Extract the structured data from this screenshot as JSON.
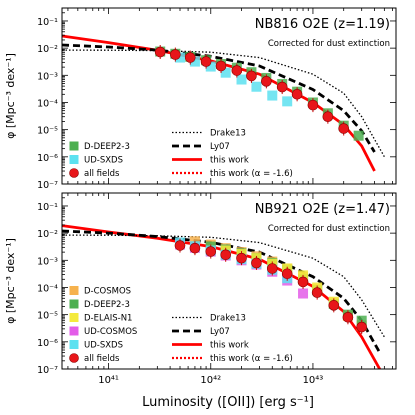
{
  "chart_data": [
    {
      "type": "scatter",
      "panel_title": "NB816 O2E (z=1.19)",
      "annotation": "Corrected for dust extinction",
      "ylabel": "φ [Mpc⁻³ dex⁻¹]",
      "xlabel": "",
      "x_scale": "log",
      "y_scale": "log",
      "xlim": [
        3.5e+40,
        6.5e+43
      ],
      "ylim": [
        1e-07,
        0.3
      ],
      "y_ticks": [
        "10⁻⁷",
        "10⁻⁶",
        "10⁻⁵",
        "10⁻⁴",
        "10⁻³",
        "10⁻²",
        "10⁻¹"
      ],
      "x_ticks": [],
      "legend_left": [
        "D-DEEP2-3",
        "UD-SXDS",
        "all fields"
      ],
      "legend_right": [
        "Drake13",
        "Ly07",
        "this work",
        "this work (α = -1.6)"
      ],
      "legend_placement": "bottom",
      "series": [
        {
          "name": "D-DEEP2-3",
          "color": "#4caf50",
          "marker": "square",
          "x": [
            3.2e+41,
            4.5e+41,
            6.3e+41,
            9e+41,
            1.26e+42,
            1.8e+42,
            2.5e+42,
            3.5e+42,
            5e+42,
            7e+42,
            1e+43,
            1.4e+43,
            2e+43,
            2.8e+43
          ],
          "y": [
            0.0075,
            0.0062,
            0.0048,
            0.0036,
            0.0026,
            0.0019,
            0.0013,
            0.0008,
            0.00048,
            0.00025,
            0.0001,
            4e-05,
            1.4e-05,
            6e-06
          ]
        },
        {
          "name": "UD-SXDS",
          "color": "#5ce1f0",
          "marker": "square",
          "x": [
            5e+41,
            7e+41,
            1e+42,
            1.4e+42,
            2e+42,
            2.8e+42,
            4e+42,
            5.6e+42
          ],
          "y": [
            0.0045,
            0.0032,
            0.0021,
            0.00125,
            0.0007,
            0.00038,
            0.00018,
            0.00011
          ]
        },
        {
          "name": "all fields",
          "color": "#e8161a",
          "marker": "circle",
          "x": [
            3.2e+41,
            4.5e+41,
            6.3e+41,
            9e+41,
            1.26e+42,
            1.8e+42,
            2.5e+42,
            3.5e+42,
            5e+42,
            7e+42,
            1e+43,
            1.4e+43,
            2e+43
          ],
          "y": [
            0.0072,
            0.0058,
            0.0045,
            0.0032,
            0.0022,
            0.0015,
            0.00095,
            0.0006,
            0.00037,
            0.0002,
            8e-05,
            3e-05,
            1.1e-05
          ]
        }
      ],
      "curves": [
        {
          "name": "this work",
          "color": "#ff0000",
          "style": "solid",
          "x": [
            3.5e+40,
            1e+41,
            3e+41,
            1e+42,
            3e+42,
            1e+43,
            2e+43,
            3e+43,
            4e+43
          ],
          "y": [
            0.028,
            0.016,
            0.0083,
            0.0034,
            0.0011,
            0.0001,
            1.5e-05,
            2.5e-06,
            3e-07
          ]
        },
        {
          "name": "Ly07",
          "color": "#000000",
          "style": "dashed",
          "x": [
            3.5e+40,
            1e+41,
            3e+41,
            1e+42,
            3e+42,
            1e+43,
            2e+43,
            3e+43,
            4e+43
          ],
          "y": [
            0.013,
            0.011,
            0.0085,
            0.005,
            0.0022,
            0.0003,
            5e-05,
            9e-06,
            1.5e-06
          ]
        },
        {
          "name": "Drake13",
          "color": "#000000",
          "style": "dotted",
          "x": [
            3.5e+40,
            1e+41,
            3e+41,
            1e+42,
            3e+42,
            1e+43,
            2e+43,
            3e+43,
            5e+43
          ],
          "y": [
            0.0085,
            0.0084,
            0.0081,
            0.0071,
            0.0045,
            0.0011,
            0.00022,
            3e-05,
            1e-06
          ]
        }
      ]
    },
    {
      "type": "scatter",
      "panel_title": "NB921 O2E (z=1.47)",
      "annotation": "Corrected for dust extinction",
      "ylabel": "φ [Mpc⁻³ dex⁻¹]",
      "xlabel": "Luminosity ([OII]) [erg s⁻¹]",
      "x_scale": "log",
      "y_scale": "log",
      "xlim": [
        3.5e+40,
        6.5e+43
      ],
      "ylim": [
        1e-07,
        0.3
      ],
      "y_ticks": [
        "10⁻⁷",
        "10⁻⁶",
        "10⁻⁵",
        "10⁻⁴",
        "10⁻³",
        "10⁻²",
        "10⁻¹"
      ],
      "x_ticks": [
        "10⁴¹",
        "10⁴²",
        "10⁴³"
      ],
      "legend_left": [
        "D-COSMOS",
        "D-DEEP2-3",
        "D-ELAIS-N1",
        "UD-COSMOS",
        "UD-SXDS",
        "all fields"
      ],
      "legend_right": [
        "Drake13",
        "Ly07",
        "this work",
        "this work (α = -1.6)"
      ],
      "legend_placement": "bottom",
      "series": [
        {
          "name": "D-COSMOS",
          "color": "#f6b24d",
          "marker": "square",
          "x": [
            7e+41,
            1e+42,
            1.4e+42,
            2e+42,
            2.8e+42,
            4e+42,
            5.6e+42,
            8e+42,
            1.1e+43,
            1.6e+43,
            2.2e+43,
            3e+43
          ],
          "y": [
            0.005,
            0.0038,
            0.0028,
            0.002,
            0.0014,
            0.0009,
            0.0005,
            0.00025,
            9e-05,
            2.8e-05,
            9e-06,
            4e-06
          ]
        },
        {
          "name": "D-DEEP2-3",
          "color": "#4caf50",
          "marker": "square",
          "x": [
            1e+42,
            1.4e+42,
            2e+42,
            2.8e+42,
            4e+42,
            5.6e+42,
            8e+42,
            1.1e+43,
            1.6e+43,
            2.2e+43,
            3e+43
          ],
          "y": [
            0.0032,
            0.0025,
            0.0018,
            0.0012,
            0.0008,
            0.00045,
            0.0002,
            8e-05,
            2.5e-05,
            1e-05,
            6e-06
          ]
        },
        {
          "name": "D-ELAIS-N1",
          "color": "#f4ea3c",
          "marker": "square",
          "x": [
            1.4e+42,
            2e+42,
            2.8e+42,
            4e+42,
            5.6e+42,
            8e+42,
            1.1e+43,
            1.6e+43
          ],
          "y": [
            0.0023,
            0.0017,
            0.0012,
            0.00075,
            0.0005,
            0.00028,
            0.0001,
            3e-05
          ]
        },
        {
          "name": "UD-COSMOS",
          "color": "#e35ce8",
          "marker": "square",
          "x": [
            5e+41,
            7e+41,
            1e+42,
            1.4e+42,
            2e+42,
            2.8e+42,
            4e+42,
            5.6e+42,
            8e+42
          ],
          "y": [
            0.0038,
            0.0029,
            0.0021,
            0.0015,
            0.001,
            0.0007,
            0.00038,
            0.00018,
            6e-05
          ]
        },
        {
          "name": "UD-SXDS",
          "color": "#5ce1f0",
          "marker": "square",
          "x": [
            5e+41,
            7e+41,
            1e+42,
            1.4e+42,
            2e+42,
            2.8e+42,
            4e+42,
            5.6e+42
          ],
          "y": [
            0.0045,
            0.0033,
            0.0023,
            0.0016,
            0.0011,
            0.00075,
            0.00045,
            0.00022
          ]
        },
        {
          "name": "all fields",
          "color": "#e8161a",
          "marker": "circle",
          "x": [
            5e+41,
            7e+41,
            1e+42,
            1.4e+42,
            2e+42,
            2.8e+42,
            4e+42,
            5.6e+42,
            8e+42,
            1.1e+43,
            1.6e+43,
            2.2e+43,
            3e+43
          ],
          "y": [
            0.0035,
            0.0028,
            0.0021,
            0.0016,
            0.0012,
            0.0008,
            0.0005,
            0.00032,
            0.00016,
            6.5e-05,
            2.2e-05,
            8e-06,
            3.5e-06
          ]
        }
      ],
      "curves": [
        {
          "name": "this work",
          "color": "#ff0000",
          "style": "solid",
          "x": [
            3.5e+40,
            1e+41,
            3e+41,
            1e+42,
            3e+42,
            1e+43,
            2e+43,
            3e+43,
            4.5e+43
          ],
          "y": [
            0.019,
            0.011,
            0.0065,
            0.0032,
            0.0011,
            0.00011,
            1.3e-05,
            1.5e-06,
            1e-07
          ]
        },
        {
          "name": "Ly07",
          "color": "#000000",
          "style": "dashed",
          "x": [
            3.5e+40,
            1e+41,
            3e+41,
            1e+42,
            3e+42,
            1e+43,
            2e+43,
            3e+43,
            4.5e+43
          ],
          "y": [
            0.012,
            0.01,
            0.0075,
            0.0046,
            0.002,
            0.00025,
            4e-05,
            6e-06,
            4e-07
          ]
        },
        {
          "name": "Drake13",
          "color": "#000000",
          "style": "dotted",
          "x": [
            3.5e+40,
            1e+41,
            3e+41,
            1e+42,
            3e+42,
            1e+43,
            2e+43,
            3e+43,
            5e+43
          ],
          "y": [
            0.0085,
            0.0084,
            0.008,
            0.007,
            0.0045,
            0.0012,
            0.00025,
            3.5e-05,
            1.5e-06
          ]
        }
      ]
    }
  ]
}
